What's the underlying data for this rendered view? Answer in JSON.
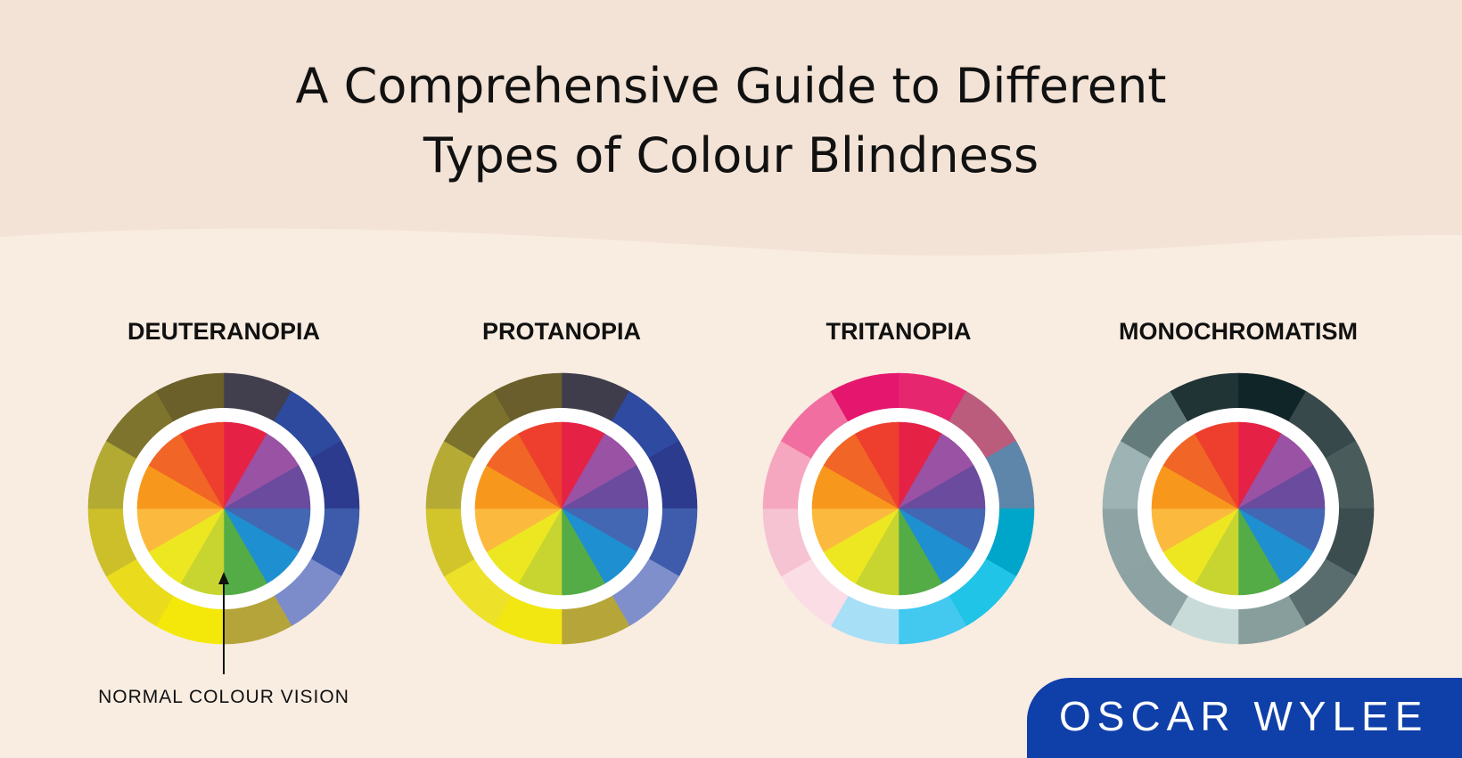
{
  "title": {
    "line1": "A Comprehensive Guide to Different",
    "line2": "Types of Colour Blindness"
  },
  "background": {
    "cream": "#f9ece1",
    "band": "#f3e3d6",
    "text": "#111111"
  },
  "inner_wheel_colors": [
    "#e52245",
    "#9a52a4",
    "#6a4b9e",
    "#4367b2",
    "#1e8fd0",
    "#53ac46",
    "#c8d531",
    "#ede722",
    "#fbba3e",
    "#f7981d",
    "#f16526",
    "#ee3f2e"
  ],
  "wheels": [
    {
      "label": "DEUTERANOPIA",
      "outer_colors": [
        "#413f4e",
        "#2d4a9f",
        "#2c3b8d",
        "#3d5baa",
        "#7c8ccb",
        "#b5a43a",
        "#f3e80a",
        "#eadb1c",
        "#ccbf2a",
        "#b3aa33",
        "#7e742e",
        "#6b5f2a"
      ]
    },
    {
      "label": "PROTANOPIA",
      "outer_colors": [
        "#3f3d4b",
        "#2e4aa1",
        "#2c3b8d",
        "#3e5cab",
        "#7e8fcc",
        "#b6a63a",
        "#f2e710",
        "#ede12a",
        "#d2c52b",
        "#b5ab34",
        "#7c722e",
        "#6a5e2c"
      ]
    },
    {
      "label": "TRITANOPIA",
      "outer_colors": [
        "#e6266f",
        "#bb5c7c",
        "#5e86ab",
        "#00a6c9",
        "#20c4e6",
        "#43c8f0",
        "#a7dff7",
        "#fbdde6",
        "#f6c3d2",
        "#f6a7c0",
        "#f06fa0",
        "#e5166d"
      ]
    },
    {
      "label": "MONOCHROMATISM",
      "outer_colors": [
        "#0f2527",
        "#37494b",
        "#4a5b5c",
        "#3b4d4e",
        "#5a6d6e",
        "#889e9d",
        "#c8dbd8",
        "#8da2a3",
        "#8ea4a4",
        "#9eb3b3",
        "#657c7c",
        "#203335"
      ]
    }
  ],
  "annotation": {
    "text": "NORMAL COLOUR VISION"
  },
  "brand": {
    "text": "OSCAR WYLEE",
    "color": "#0f3fa8"
  }
}
